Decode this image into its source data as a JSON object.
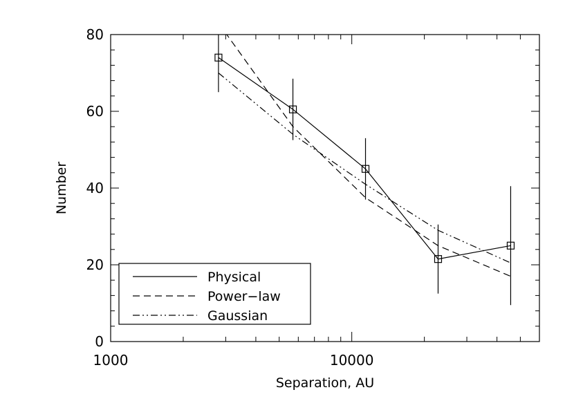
{
  "chart_data": {
    "type": "line",
    "title": "",
    "xlabel": "Separation, AU",
    "ylabel": "Number",
    "xscale": "log",
    "xlim": [
      1000,
      60000
    ],
    "ylim": [
      0,
      80
    ],
    "xticks": [
      {
        "value": 1000,
        "label": "1000"
      },
      {
        "value": 10000,
        "label": "10000"
      }
    ],
    "yticks": [
      {
        "value": 0,
        "label": "0"
      },
      {
        "value": 20,
        "label": "20"
      },
      {
        "value": 40,
        "label": "40"
      },
      {
        "value": 60,
        "label": "60"
      },
      {
        "value": 80,
        "label": "80"
      }
    ],
    "grid": false,
    "legend_position": "bottom-left",
    "series": [
      {
        "name": "Physical",
        "style": "solid",
        "markers": true,
        "x": [
          2800,
          5700,
          11400,
          22800,
          45600
        ],
        "y": [
          74,
          60.5,
          45,
          21.5,
          25
        ],
        "yerr_low": [
          65,
          52.5,
          37,
          12.5,
          9.5
        ],
        "yerr_high": [
          82,
          68.5,
          53,
          30.5,
          40.5
        ]
      },
      {
        "name": "Power−law",
        "style": "dashed",
        "markers": false,
        "x": [
          2800,
          5700,
          11400,
          22800,
          45600
        ],
        "y": [
          83,
          56,
          37.5,
          25,
          17
        ]
      },
      {
        "name": "Gaussian",
        "style": "dash-dot-dot",
        "markers": false,
        "x": [
          2800,
          5700,
          11400,
          22800,
          45600
        ],
        "y": [
          70,
          54,
          41,
          29,
          20.5
        ]
      }
    ]
  }
}
